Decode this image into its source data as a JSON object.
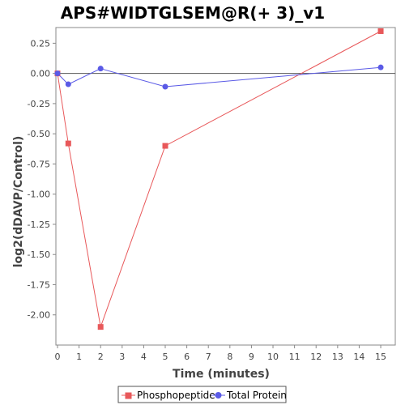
{
  "chart_data": {
    "type": "line",
    "title": "APS#WIDTGLSEM@R(+ 3)_v1",
    "xlabel": "Time (minutes)",
    "ylabel": "log2(dDAVP/Control)",
    "xlim": [
      0,
      15.6
    ],
    "ylim": [
      -2.25,
      0.38
    ],
    "xticks": [
      0,
      1,
      2,
      3,
      4,
      5,
      6,
      7,
      8,
      9,
      10,
      11,
      12,
      13,
      14,
      15
    ],
    "yticks": [
      0.25,
      0.0,
      -0.25,
      -0.5,
      -0.75,
      -1.0,
      -1.25,
      -1.5,
      -1.75,
      -2.0
    ],
    "ytick_labels": [
      "0.25",
      "0.00",
      "-0.25",
      "-0.50",
      "-0.75",
      "-1.00",
      "-1.25",
      "-1.50",
      "-1.75",
      "-2.00"
    ],
    "grid": false,
    "zero_line": true,
    "legend_position": "bottom",
    "series": [
      {
        "name": "Phosphopeptide",
        "color": "#e8585a",
        "marker": "square",
        "x": [
          0,
          0.5,
          2,
          5,
          15
        ],
        "y": [
          0.0,
          -0.58,
          -2.1,
          -0.6,
          0.35
        ]
      },
      {
        "name": "Total Protein",
        "color": "#5a5ae6",
        "marker": "circle",
        "x": [
          0,
          0.5,
          2,
          5,
          15
        ],
        "y": [
          0.0,
          -0.09,
          0.04,
          -0.11,
          0.05
        ]
      }
    ]
  }
}
